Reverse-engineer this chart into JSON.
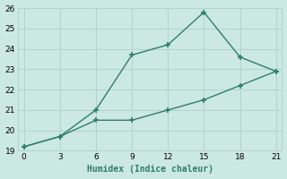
{
  "line1_x": [
    0,
    3,
    6,
    9,
    12,
    15,
    18,
    21
  ],
  "line1_y": [
    19.2,
    19.7,
    21.0,
    23.7,
    24.2,
    25.8,
    23.6,
    22.9
  ],
  "line2_x": [
    0,
    3,
    6,
    9,
    12,
    15,
    18,
    21
  ],
  "line2_y": [
    19.2,
    19.7,
    20.5,
    20.5,
    21.0,
    21.5,
    22.2,
    22.9
  ],
  "line_color": "#2e7d6e",
  "bg_color": "#cce8e2",
  "grid_color": "#b0d4cc",
  "xlabel": "Humidex (Indice chaleur)",
  "xlabel_fontsize": 7,
  "xlim": [
    -0.5,
    21.5
  ],
  "ylim": [
    19,
    26
  ],
  "xticks": [
    0,
    3,
    6,
    9,
    12,
    15,
    18,
    21
  ],
  "yticks": [
    19,
    20,
    21,
    22,
    23,
    24,
    25,
    26
  ],
  "tick_fontsize": 6.5,
  "marker": "+",
  "marker_size": 5,
  "linewidth": 1.0
}
